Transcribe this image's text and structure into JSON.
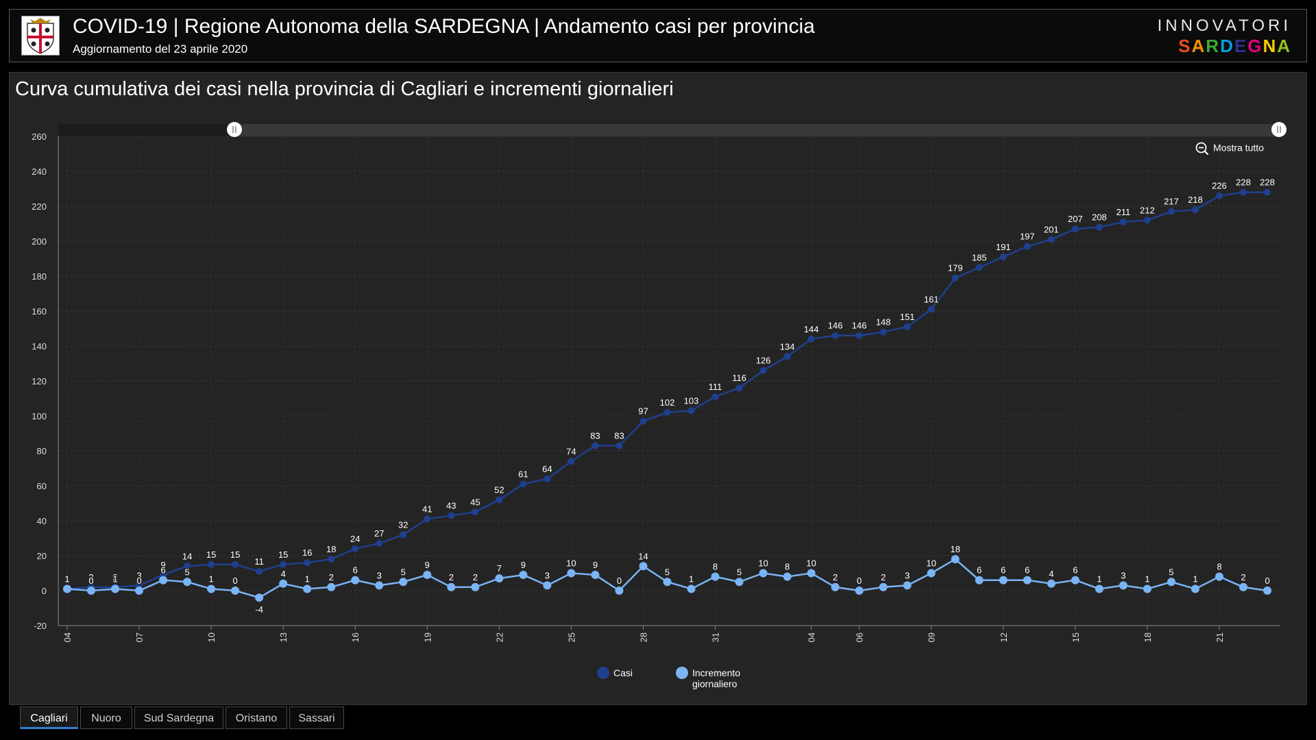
{
  "header": {
    "title": "COVID-19 | Regione Autonoma della SARDEGNA | Andamento casi per provincia",
    "subtitle": "Aggiornamento del 23 aprile 2020",
    "brand_top": "INNOVATORI",
    "brand_bottom": "SARDEGNA",
    "brand_colors": [
      "#e94e1b",
      "#f39200",
      "#3aaa35",
      "#009fe3",
      "#2e3192",
      "#e6007e",
      "#ffcc00",
      "#95c11f"
    ]
  },
  "panel": {
    "title": "Curva cumulativa dei casi nella provincia di Cagliari e incrementi giornalieri",
    "mostra_tutto": "Mostra tutto"
  },
  "tabs": [
    {
      "label": "Cagliari",
      "active": true
    },
    {
      "label": "Nuoro",
      "active": false
    },
    {
      "label": "Sud Sardegna",
      "active": false
    },
    {
      "label": "Oristano",
      "active": false
    },
    {
      "label": "Sassari",
      "active": false
    }
  ],
  "colors": {
    "casi": "#1f3f8f",
    "incremento": "#7ab4f5",
    "panel_bg": "#242424",
    "tab_accent": "#2f7fd6"
  },
  "chart_data": {
    "type": "line",
    "ylim": [
      -20,
      260
    ],
    "yticks": [
      -20,
      0,
      20,
      40,
      60,
      80,
      100,
      120,
      140,
      160,
      180,
      200,
      220,
      240,
      260
    ],
    "x": [
      "04",
      "05",
      "06",
      "07",
      "08",
      "09",
      "10",
      "11",
      "12",
      "13",
      "14",
      "15",
      "16",
      "17",
      "18",
      "19",
      "20",
      "21",
      "22",
      "23",
      "24",
      "25",
      "26",
      "27",
      "28",
      "29",
      "30",
      "31",
      "01",
      "02",
      "03",
      "04",
      "05",
      "06",
      "07",
      "08",
      "09",
      "10",
      "11",
      "12",
      "13",
      "14",
      "15",
      "16",
      "17",
      "18",
      "19",
      "20",
      "21",
      "22",
      "23"
    ],
    "xtick_labels": [
      "04",
      "07",
      "10",
      "13",
      "16",
      "19",
      "22",
      "25",
      "28",
      "31",
      "04",
      "06",
      "09",
      "12",
      "15",
      "18",
      "21"
    ],
    "xtick_indices": [
      0,
      3,
      6,
      9,
      12,
      15,
      18,
      21,
      24,
      27,
      31,
      33,
      36,
      39,
      42,
      45,
      48
    ],
    "series": [
      {
        "name": "Casi",
        "values": [
          1,
          2,
          2,
          3,
          9,
          14,
          15,
          15,
          11,
          15,
          16,
          18,
          24,
          27,
          32,
          41,
          43,
          45,
          52,
          61,
          64,
          74,
          83,
          83,
          97,
          102,
          103,
          111,
          116,
          126,
          134,
          144,
          146,
          146,
          148,
          151,
          161,
          179,
          185,
          191,
          197,
          201,
          207,
          208,
          211,
          212,
          217,
          218,
          226,
          228,
          228
        ]
      },
      {
        "name": "Incremento giornaliero",
        "values": [
          1,
          0,
          1,
          0,
          6,
          5,
          1,
          0,
          -4,
          4,
          1,
          2,
          6,
          3,
          5,
          9,
          2,
          2,
          7,
          9,
          3,
          10,
          9,
          0,
          14,
          5,
          1,
          8,
          5,
          10,
          8,
          10,
          2,
          0,
          2,
          3,
          10,
          18,
          6,
          6,
          6,
          4,
          6,
          1,
          3,
          1,
          5,
          1,
          8,
          2,
          0
        ]
      }
    ],
    "legend": [
      "Casi",
      "Incremento\ngiornaliero"
    ],
    "legend_position": "bottom-center",
    "grid": true
  }
}
